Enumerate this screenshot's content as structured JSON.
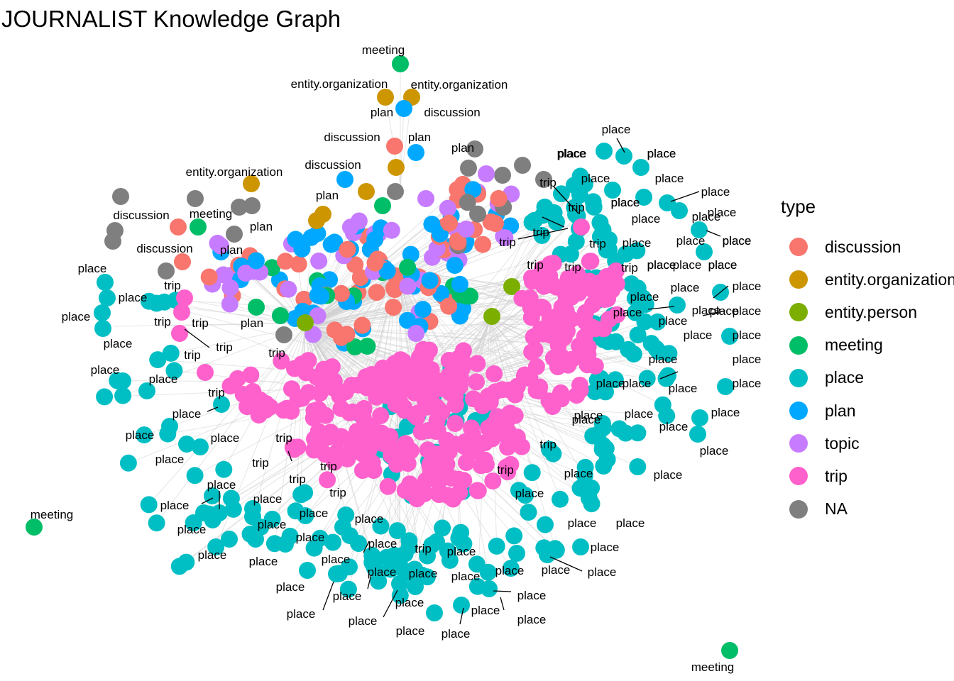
{
  "title": "JOURNALIST Knowledge Graph",
  "legend": {
    "title": "type",
    "items": [
      {
        "label": "discussion",
        "color": "#F8766D"
      },
      {
        "label": "entity.organization",
        "color": "#CD9600"
      },
      {
        "label": "entity.person",
        "color": "#7CAE00"
      },
      {
        "label": "meeting",
        "color": "#00BE67"
      },
      {
        "label": "place",
        "color": "#00BFC4"
      },
      {
        "label": "plan",
        "color": "#00A9FF"
      },
      {
        "label": "topic",
        "color": "#C77CFF"
      },
      {
        "label": "trip",
        "color": "#FF61CC"
      },
      {
        "label": "NA",
        "color": "#7F7F7F"
      }
    ]
  },
  "labels": {
    "top": [
      {
        "text": "meeting",
        "type": "meeting"
      },
      {
        "text": "entity.organization",
        "type": "entity.organization"
      },
      {
        "text": "entity.organization",
        "type": "entity.organization"
      },
      {
        "text": "plan",
        "type": "plan"
      },
      {
        "text": "discussion",
        "type": "discussion"
      },
      {
        "text": "discussion",
        "type": "discussion"
      },
      {
        "text": "plan",
        "type": "plan"
      },
      {
        "text": "plan",
        "type": "plan"
      },
      {
        "text": "discussion",
        "type": "discussion"
      },
      {
        "text": "entity.organization",
        "type": "entity.organization"
      },
      {
        "text": "plan",
        "type": "plan"
      },
      {
        "text": "discussion",
        "type": "discussion"
      },
      {
        "text": "meeting",
        "type": "meeting"
      },
      {
        "text": "plan",
        "type": "plan"
      },
      {
        "text": "plan",
        "type": "plan"
      },
      {
        "text": "discussion",
        "type": "discussion"
      },
      {
        "text": "plan",
        "type": "plan"
      }
    ],
    "isolated": [
      {
        "text": "meeting",
        "type": "meeting"
      },
      {
        "text": "meeting",
        "type": "meeting"
      }
    ],
    "trip": [
      "trip",
      "trip",
      "trip",
      "trip",
      "trip",
      "trip",
      "trip",
      "trip",
      "trip",
      "trip",
      "trip",
      "trip",
      "trip",
      "trip",
      "trip",
      "trip",
      "trip",
      "trip",
      "trip",
      "trip",
      "trip",
      "trip",
      "trip",
      "trip"
    ],
    "place": [
      "place",
      "place",
      "place",
      "place",
      "place",
      "place",
      "place",
      "place",
      "place",
      "place",
      "place",
      "place",
      "place",
      "place",
      "place",
      "place",
      "place",
      "place",
      "place",
      "place",
      "place",
      "place",
      "place",
      "place",
      "place",
      "place",
      "place",
      "place",
      "place",
      "place",
      "place",
      "place",
      "place",
      "place",
      "place",
      "place",
      "place",
      "place",
      "place",
      "place",
      "place",
      "place",
      "place",
      "place",
      "place",
      "place",
      "place",
      "place",
      "place",
      "place",
      "place",
      "place",
      "place",
      "place",
      "place",
      "place",
      "place",
      "place",
      "place",
      "place",
      "place",
      "place",
      "place",
      "place",
      "place",
      "place",
      "place",
      "place",
      "place",
      "place",
      "place",
      "place",
      "place",
      "place",
      "place",
      "place",
      "place",
      "place",
      "place",
      "place",
      "place",
      "place",
      "place",
      "place",
      "place",
      "place",
      "place",
      "place",
      "place",
      "place"
    ]
  }
}
